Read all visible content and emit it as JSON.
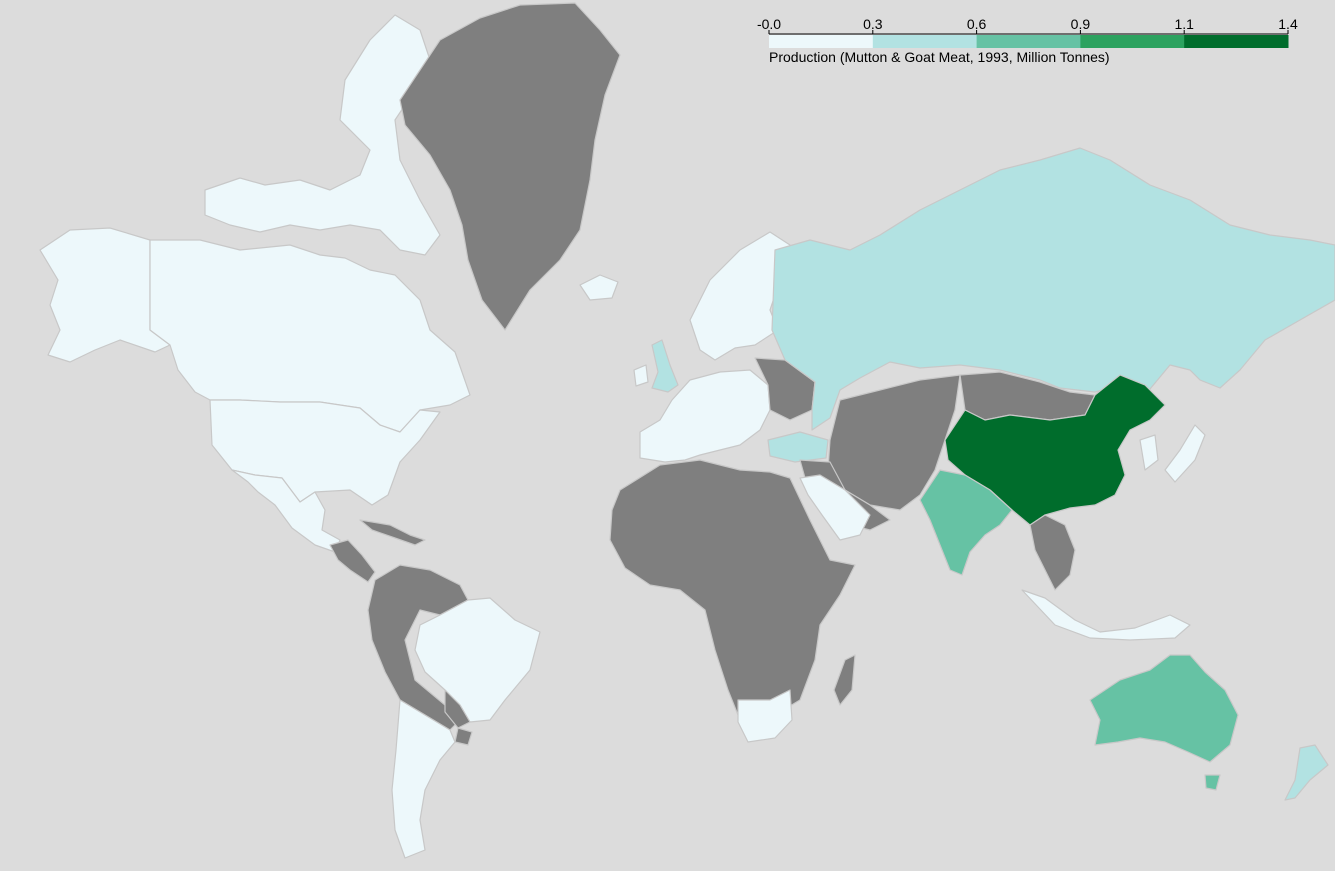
{
  "legend": {
    "title": "Production (Mutton & Goat Meat, 1993, Million Tonnes)",
    "ticks": [
      "-0.0",
      "0.3",
      "0.6",
      "0.9",
      "1.1",
      "1.4"
    ],
    "bins": [
      {
        "min": 0.0,
        "max": 0.3,
        "color": "#edf8fb"
      },
      {
        "min": 0.3,
        "max": 0.6,
        "color": "#b2e2e2"
      },
      {
        "min": 0.6,
        "max": 0.9,
        "color": "#66c2a4"
      },
      {
        "min": 0.9,
        "max": 1.1,
        "color": "#2ca25f"
      },
      {
        "min": 1.1,
        "max": 1.4,
        "color": "#006d2c"
      }
    ]
  },
  "colors": {
    "ocean": "#dcdcdc",
    "no_data": "#7f7f7f",
    "border": "#c8c8c8"
  },
  "regions": [
    {
      "name": "Canada",
      "bin": 0
    },
    {
      "name": "Canadian Arctic Islands",
      "bin": 0
    },
    {
      "name": "Alaska",
      "bin": 0
    },
    {
      "name": "United States",
      "bin": 0
    },
    {
      "name": "Mexico",
      "bin": 0
    },
    {
      "name": "Greenland",
      "bin": "no_data"
    },
    {
      "name": "Iceland",
      "bin": 0
    },
    {
      "name": "Central America",
      "bin": "no_data"
    },
    {
      "name": "Caribbean",
      "bin": "no_data"
    },
    {
      "name": "Northern Andes",
      "bin": "no_data"
    },
    {
      "name": "Brazil",
      "bin": 0
    },
    {
      "name": "Southern Cone",
      "bin": 0
    },
    {
      "name": "Paraguay",
      "bin": "no_data"
    },
    {
      "name": "Uruguay",
      "bin": "no_data"
    },
    {
      "name": "Scandinavia",
      "bin": 0
    },
    {
      "name": "United Kingdom",
      "bin": 1
    },
    {
      "name": "Ireland",
      "bin": 0
    },
    {
      "name": "Western Europe",
      "bin": 0
    },
    {
      "name": "Eastern Europe",
      "bin": "no_data"
    },
    {
      "name": "Turkey",
      "bin": 1
    },
    {
      "name": "Russia",
      "bin": 1
    },
    {
      "name": "Kazakhstan",
      "bin": 1
    },
    {
      "name": "Central Asia",
      "bin": "no_data"
    },
    {
      "name": "Mongolia",
      "bin": "no_data"
    },
    {
      "name": "China",
      "bin": 4
    },
    {
      "name": "India",
      "bin": 2
    },
    {
      "name": "Middle East",
      "bin": "no_data"
    },
    {
      "name": "Saudi Arabia",
      "bin": 0
    },
    {
      "name": "Africa",
      "bin": "no_data"
    },
    {
      "name": "South Africa",
      "bin": 0
    },
    {
      "name": "Madagascar",
      "bin": "no_data"
    },
    {
      "name": "Southeast Asia",
      "bin": "no_data"
    },
    {
      "name": "Japan",
      "bin": 0
    },
    {
      "name": "Korea",
      "bin": 0
    },
    {
      "name": "Indonesia",
      "bin": 0
    },
    {
      "name": "Australia",
      "bin": 2
    },
    {
      "name": "Tasmania",
      "bin": 2
    },
    {
      "name": "New Zealand",
      "bin": 1
    }
  ]
}
